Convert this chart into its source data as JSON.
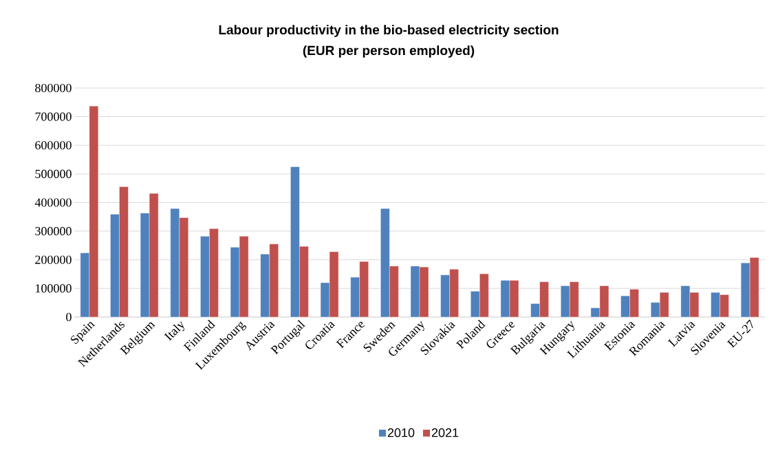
{
  "chart_data": {
    "type": "bar",
    "title": "Labour productivity in the bio-based electricity section",
    "subtitle": "(EUR per person employed)",
    "categories": [
      "Spain",
      "Netherlands",
      "Belgium",
      "Italy",
      "Finland",
      "Luxembourg",
      "Austria",
      "Portugal",
      "Croatia",
      "France",
      "Sweden",
      "Germany",
      "Slovakia",
      "Poland",
      "Greece",
      "Bulgaria",
      "Hungary",
      "Lithuania",
      "Estonia",
      "Romania",
      "Latvia",
      "Slovenia",
      "EU-27"
    ],
    "series": [
      {
        "name": "2010",
        "color": "#4f81bd",
        "values": [
          224000,
          359000,
          363000,
          379000,
          282000,
          244000,
          220000,
          525000,
          120000,
          139000,
          379000,
          178000,
          147000,
          90000,
          128000,
          47000,
          109000,
          32000,
          74000,
          51000,
          109000,
          86000,
          189000
        ]
      },
      {
        "name": "2021",
        "color": "#c0504d",
        "values": [
          737000,
          455000,
          432000,
          347000,
          309000,
          282000,
          255000,
          247000,
          228000,
          194000,
          178000,
          175000,
          167000,
          151000,
          128000,
          123000,
          123000,
          109000,
          97000,
          86000,
          86000,
          78000,
          208000
        ]
      }
    ],
    "ylim": [
      0,
      800000
    ],
    "yticks": [
      0,
      100000,
      200000,
      300000,
      400000,
      500000,
      600000,
      700000,
      800000
    ],
    "grid": "y",
    "legend": "bottom"
  }
}
